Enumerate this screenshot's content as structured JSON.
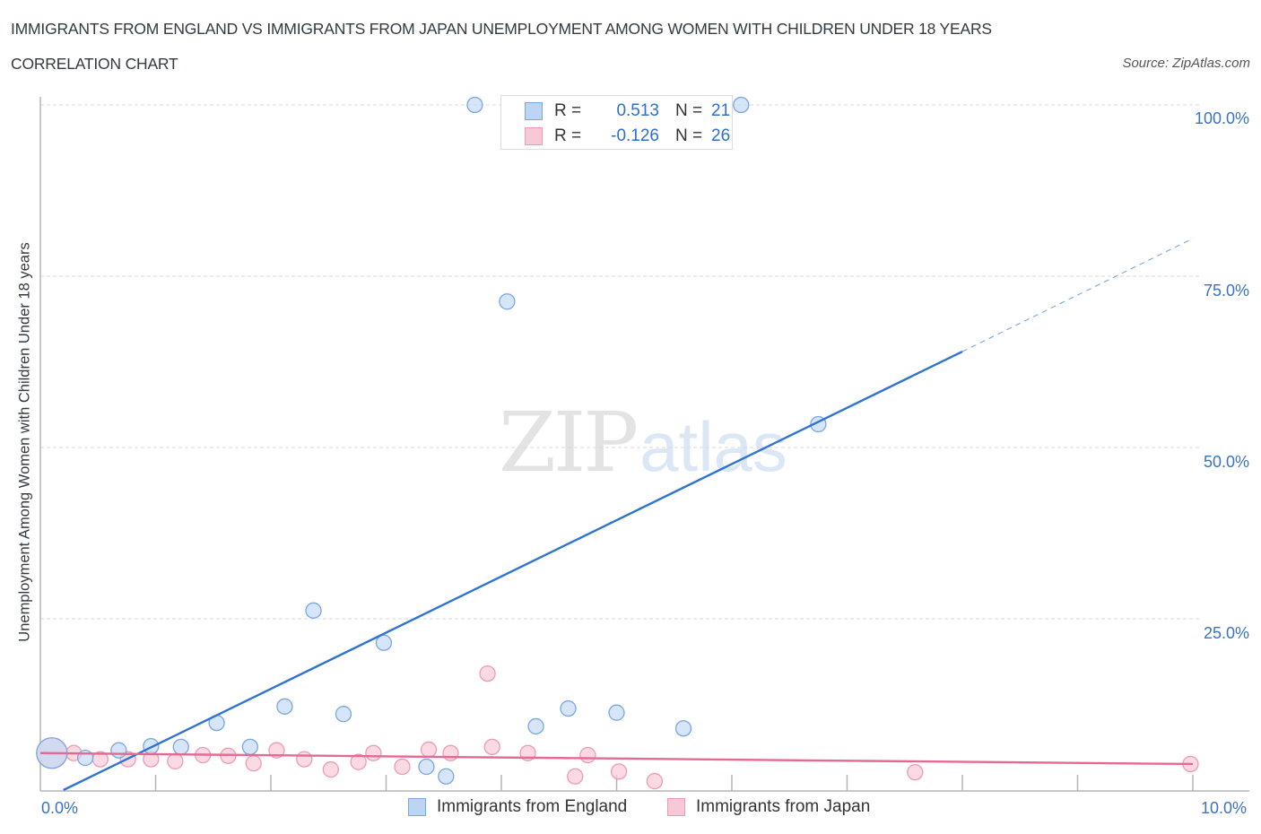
{
  "header": {
    "title": "IMMIGRANTS FROM ENGLAND VS IMMIGRANTS FROM JAPAN UNEMPLOYMENT AMONG WOMEN WITH CHILDREN UNDER 18 YEARS",
    "subtitle": "CORRELATION CHART",
    "source": "Source: ZipAtlas.com"
  },
  "watermark": {
    "zip": "ZIP",
    "atlas": "atlas"
  },
  "axes": {
    "ylabel": "Unemployment Among Women with Children Under 18 years",
    "yticks": [
      "100.0%",
      "75.0%",
      "50.0%",
      "25.0%"
    ],
    "xticks": {
      "min": "0.0%",
      "max": "10.0%"
    }
  },
  "legend_stats": {
    "england": {
      "r_label": "R =",
      "r_value": "0.513",
      "n_label": "N =",
      "n_value": "21",
      "color": "#a9c8f0"
    },
    "japan": {
      "r_label": "R =",
      "r_value": "-0.126",
      "n_label": "N =",
      "n_value": "26",
      "color": "#f6b8cb"
    }
  },
  "legend": {
    "england": "Immigrants from England",
    "japan": "Immigrants from Japan"
  },
  "colors": {
    "england_fill": "#c5daf5",
    "england_stroke": "#7aa6e2",
    "england_line": "#2f74d0",
    "japan_fill": "#f9cad8",
    "japan_stroke": "#ee9ab5",
    "japan_line": "#e46a93",
    "axis_text": "#3a72c4"
  },
  "chart_data": {
    "type": "scatter",
    "title": "IMMIGRANTS FROM ENGLAND VS IMMIGRANTS FROM JAPAN UNEMPLOYMENT AMONG WOMEN WITH CHILDREN UNDER 18 YEARS",
    "subtitle": "CORRELATION CHART",
    "xlabel": "",
    "ylabel": "Unemployment Among Women with Children Under 18 years",
    "xlim": [
      0,
      10
    ],
    "ylim": [
      0,
      100
    ],
    "x_unit": "%",
    "y_unit": "%",
    "x_tick_labels": [
      "0.0%",
      "10.0%"
    ],
    "y_tick_labels": [
      "25.0%",
      "50.0%",
      "75.0%",
      "100.0%"
    ],
    "grid": "horizontal dashed",
    "legend_position": "bottom",
    "series": [
      {
        "name": "Immigrants from England",
        "R": 0.513,
        "N": 21,
        "points": [
          {
            "x": 0.1,
            "y": 5.4,
            "large": true
          },
          {
            "x": 0.39,
            "y": 4.7
          },
          {
            "x": 0.68,
            "y": 5.8
          },
          {
            "x": 0.96,
            "y": 6.4
          },
          {
            "x": 1.22,
            "y": 6.3
          },
          {
            "x": 1.53,
            "y": 9.8
          },
          {
            "x": 1.82,
            "y": 6.3
          },
          {
            "x": 2.12,
            "y": 12.2
          },
          {
            "x": 2.37,
            "y": 26.2
          },
          {
            "x": 2.63,
            "y": 11.1
          },
          {
            "x": 2.98,
            "y": 21.5
          },
          {
            "x": 3.35,
            "y": 3.4
          },
          {
            "x": 3.52,
            "y": 2.0
          },
          {
            "x": 3.77,
            "y": 100.0
          },
          {
            "x": 4.05,
            "y": 71.3
          },
          {
            "x": 4.3,
            "y": 9.3
          },
          {
            "x": 4.58,
            "y": 11.9
          },
          {
            "x": 5.0,
            "y": 11.3
          },
          {
            "x": 5.58,
            "y": 9.0
          },
          {
            "x": 6.08,
            "y": 100.0
          },
          {
            "x": 6.75,
            "y": 53.4
          }
        ],
        "trendline": {
          "x0": 0.2,
          "y0": 0.0,
          "x1": 8.0,
          "y1": 64.0,
          "dashed_to_x": 10.0,
          "dashed_to_y": 80.5
        }
      },
      {
        "name": "Immigrants from Japan",
        "R": -0.126,
        "N": 26,
        "points": [
          {
            "x": 0.1,
            "y": 5.4,
            "large": true
          },
          {
            "x": 0.29,
            "y": 5.4
          },
          {
            "x": 0.52,
            "y": 4.5
          },
          {
            "x": 0.76,
            "y": 4.5
          },
          {
            "x": 0.96,
            "y": 4.5
          },
          {
            "x": 1.17,
            "y": 4.2
          },
          {
            "x": 1.41,
            "y": 5.1
          },
          {
            "x": 1.63,
            "y": 5.0
          },
          {
            "x": 1.85,
            "y": 3.9
          },
          {
            "x": 2.05,
            "y": 5.8
          },
          {
            "x": 2.29,
            "y": 4.5
          },
          {
            "x": 2.52,
            "y": 3.0
          },
          {
            "x": 2.76,
            "y": 4.1
          },
          {
            "x": 2.89,
            "y": 5.4
          },
          {
            "x": 3.14,
            "y": 3.4
          },
          {
            "x": 3.37,
            "y": 5.9
          },
          {
            "x": 3.56,
            "y": 5.4
          },
          {
            "x": 3.88,
            "y": 17.0
          },
          {
            "x": 3.92,
            "y": 6.3
          },
          {
            "x": 4.23,
            "y": 5.4
          },
          {
            "x": 4.64,
            "y": 2.0
          },
          {
            "x": 4.75,
            "y": 5.1
          },
          {
            "x": 5.02,
            "y": 2.7
          },
          {
            "x": 5.33,
            "y": 1.3
          },
          {
            "x": 7.59,
            "y": 2.6
          },
          {
            "x": 9.98,
            "y": 3.8
          }
        ],
        "trendline": {
          "x0": 0.0,
          "y0": 5.4,
          "x1": 10.0,
          "y1": 3.8
        }
      }
    ]
  }
}
